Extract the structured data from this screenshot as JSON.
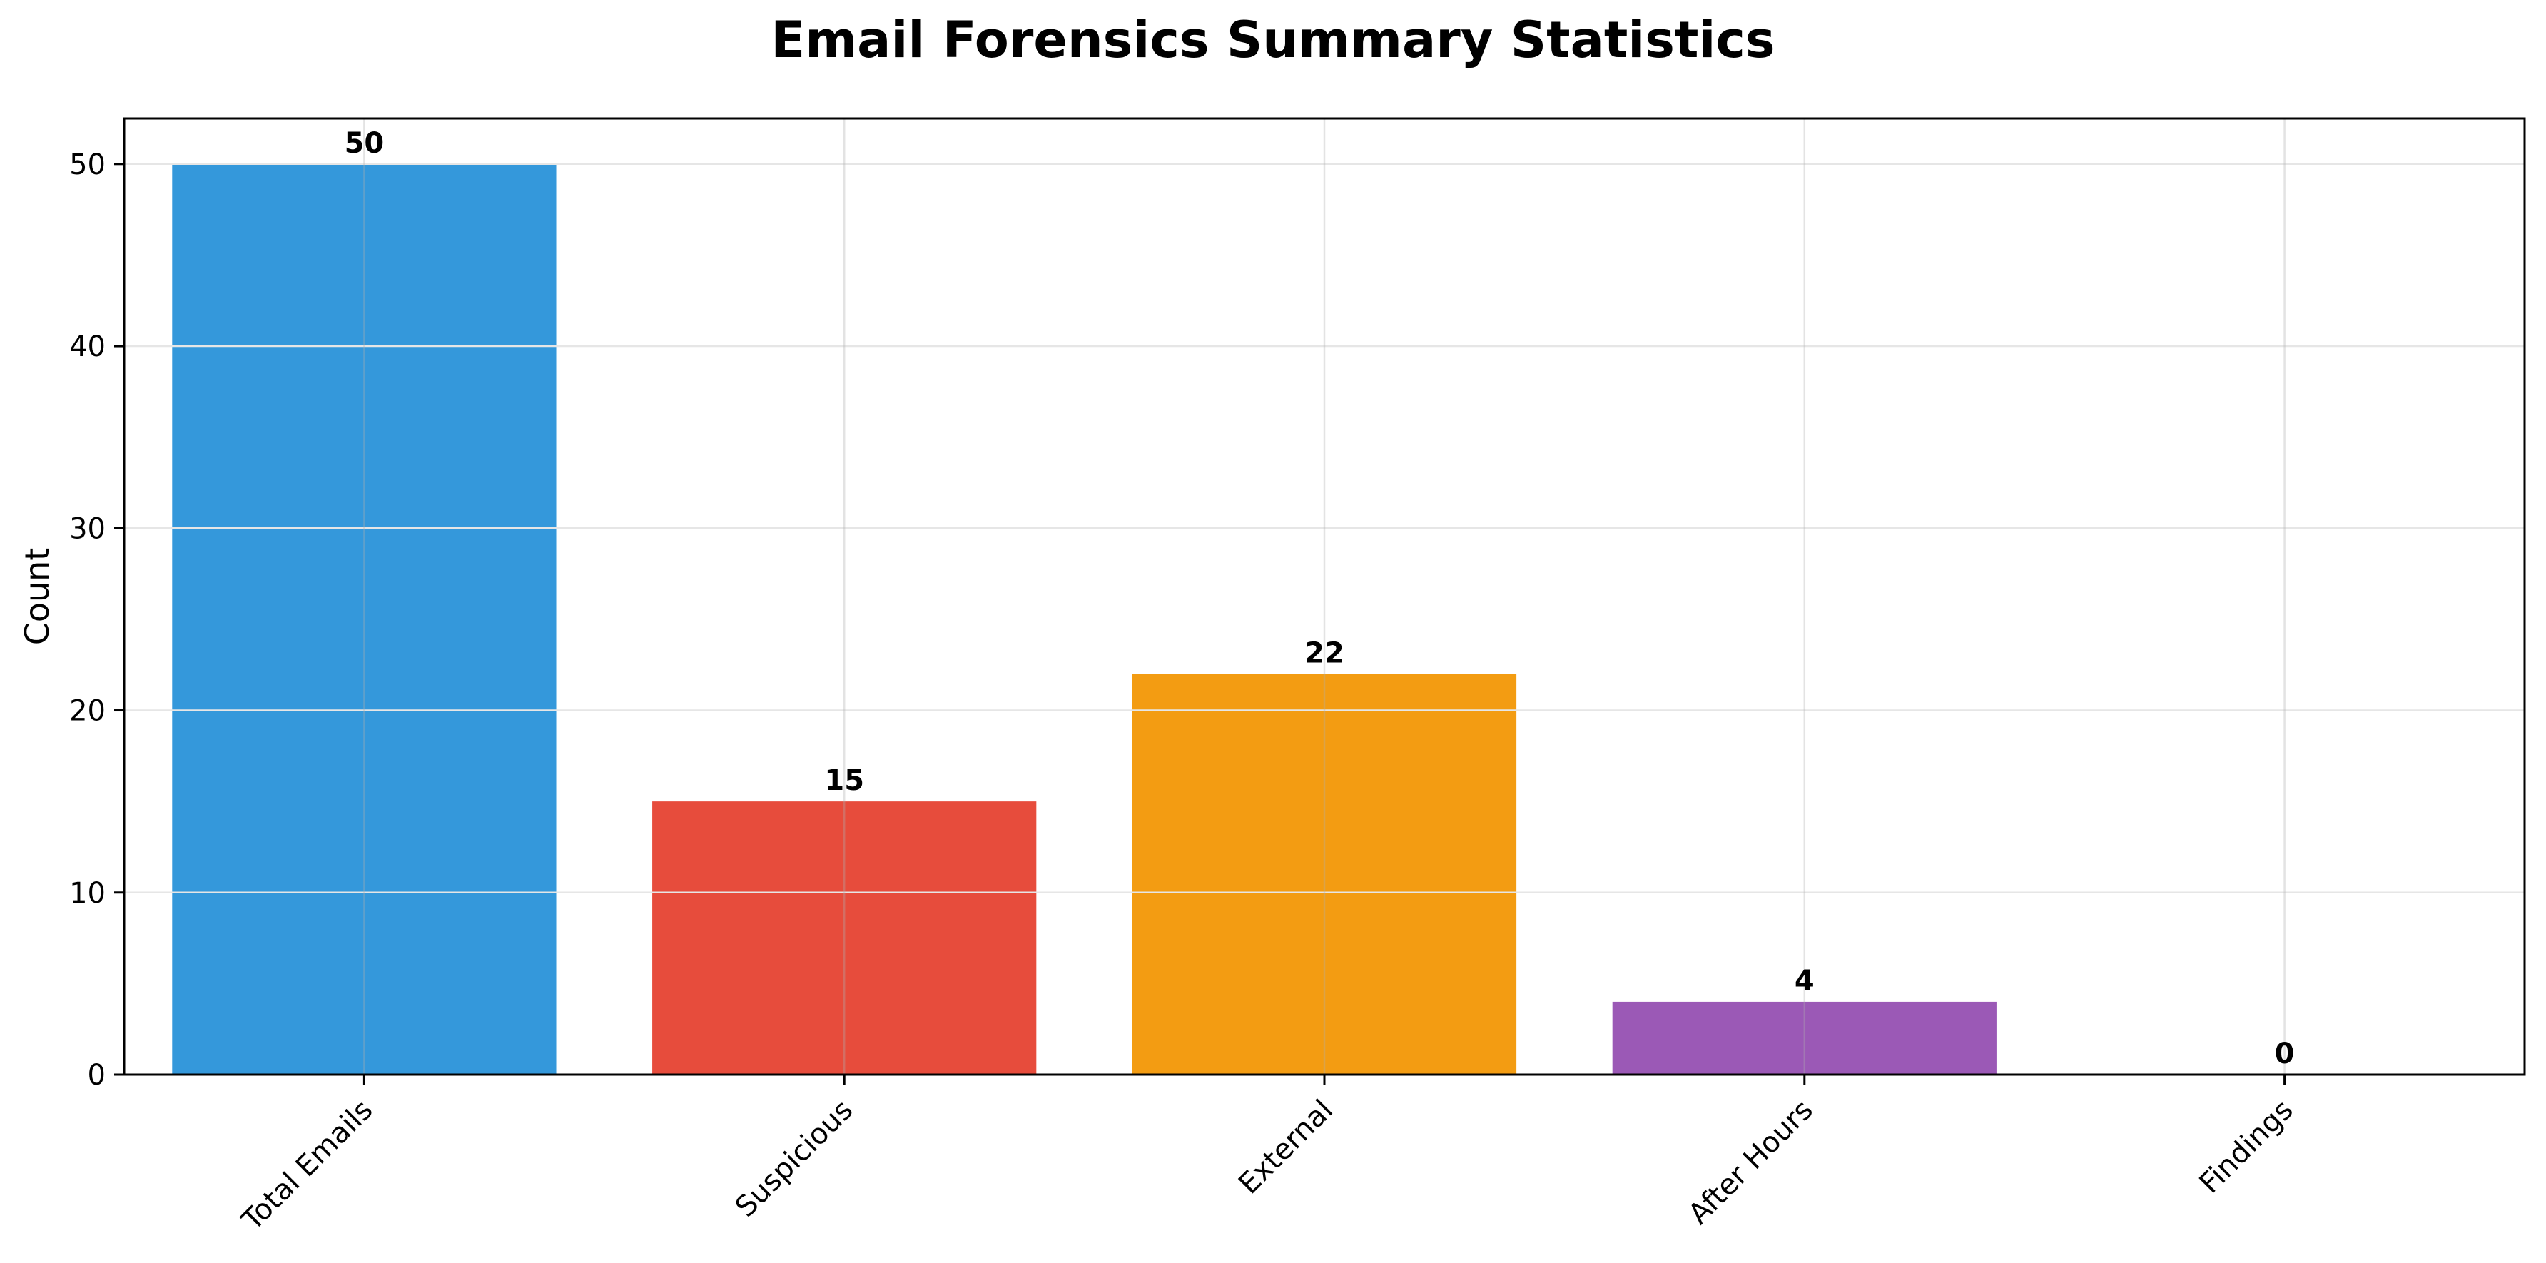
{
  "chart_data": {
    "type": "bar",
    "title": "Email Forensics Summary Statistics",
    "xlabel": "",
    "ylabel": "Count",
    "categories": [
      "Total Emails",
      "Suspicious",
      "External",
      "After Hours",
      "Findings"
    ],
    "values": [
      50,
      15,
      22,
      4,
      0
    ],
    "colors": [
      "#3498db",
      "#e74c3c",
      "#f39c12",
      "#9b59b6",
      "#2ecc71"
    ],
    "ylim": [
      0,
      52.5
    ],
    "yticks": [
      0,
      10,
      20,
      30,
      40,
      50
    ],
    "grid": true,
    "data_labels": true
  }
}
